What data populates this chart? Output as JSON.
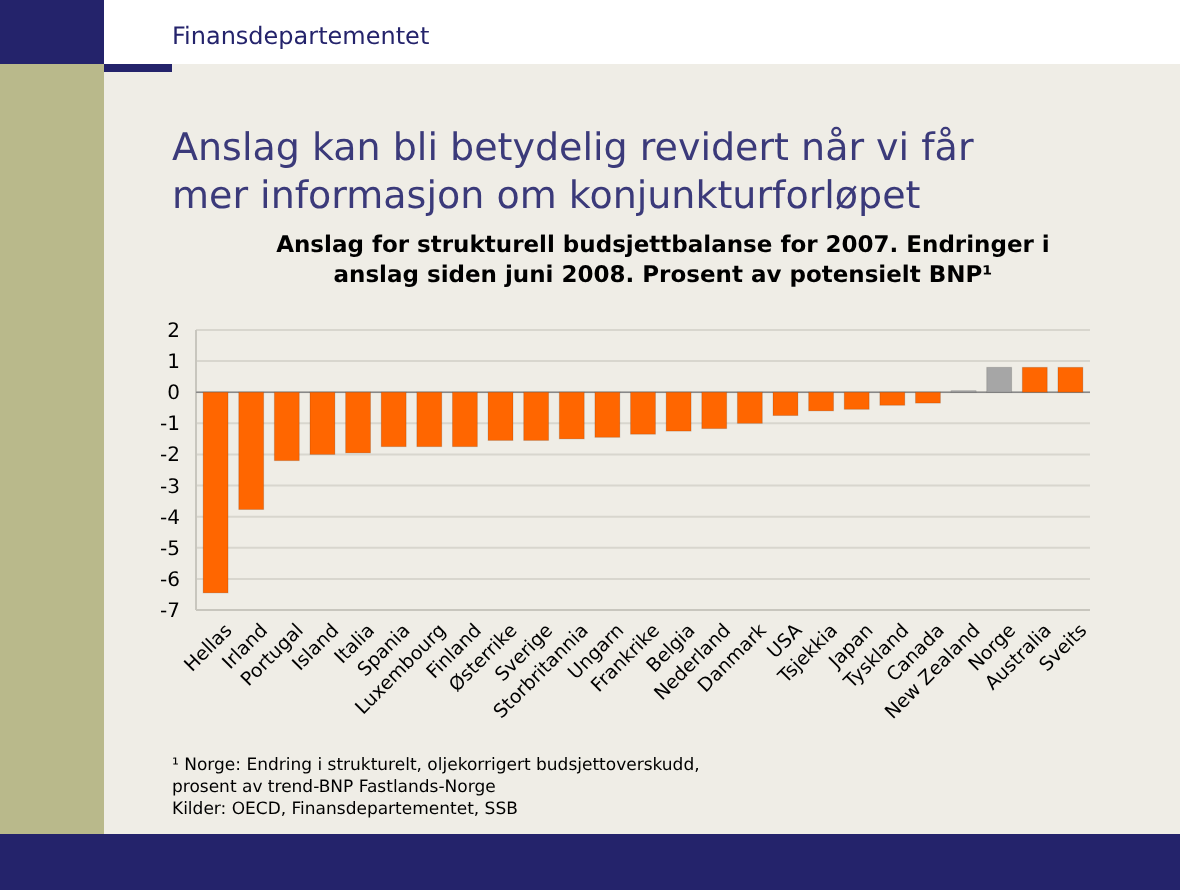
{
  "chart_data": {
    "type": "bar",
    "title": "Anslag kan bli betydelig revidert når vi får mer informasjon om konjunkturforløpet",
    "subtitle": "Anslag for strukturell budsjettbalanse for 2007. Endringer i anslag siden juni 2008. Prosent av potensielt BNP¹",
    "categories": [
      "Hellas",
      "Irland",
      "Portugal",
      "Island",
      "Italia",
      "Spania",
      "Luxembourg",
      "Finland",
      "Østerrike",
      "Sverige",
      "Storbritannia",
      "Ungarn",
      "Frankrike",
      "Belgia",
      "Nederland",
      "Danmark",
      "USA",
      "Tsjekkia",
      "Japan",
      "Tyskland",
      "Canada",
      "New Zealand",
      "Norge",
      "Australia",
      "Sveits"
    ],
    "values": [
      -6.45,
      -3.77,
      -2.2,
      -2.0,
      -1.95,
      -1.75,
      -1.75,
      -1.75,
      -1.55,
      -1.55,
      -1.5,
      -1.45,
      -1.35,
      -1.25,
      -1.17,
      -1.0,
      -0.75,
      -0.6,
      -0.55,
      -0.42,
      -0.35,
      0.05,
      0.8,
      0.8,
      0.8
    ],
    "colors": [
      "#ff6600",
      "#ff6600",
      "#ff6600",
      "#ff6600",
      "#ff6600",
      "#ff6600",
      "#ff6600",
      "#ff6600",
      "#ff6600",
      "#ff6600",
      "#ff6600",
      "#ff6600",
      "#ff6600",
      "#ff6600",
      "#ff6600",
      "#ff6600",
      "#ff6600",
      "#ff6600",
      "#ff6600",
      "#ff6600",
      "#ff6600",
      "#a6a6a6",
      "#a6a6a6",
      "#ff6600",
      "#ff6600"
    ],
    "ylim": [
      -7,
      2
    ],
    "yticks": [
      -7,
      -6,
      -5,
      -4,
      -3,
      -2,
      -1,
      0,
      1,
      2
    ],
    "grid": "y",
    "annotations": [
      "Finansdepartementet",
      "¹ Norge: Endring i strukturelt, oljekorrigert budsjettoverskudd, prosent av trend-BNP Fastlands-Norge",
      "Kilder: OECD, Finansdepartementet, SSB"
    ]
  }
}
